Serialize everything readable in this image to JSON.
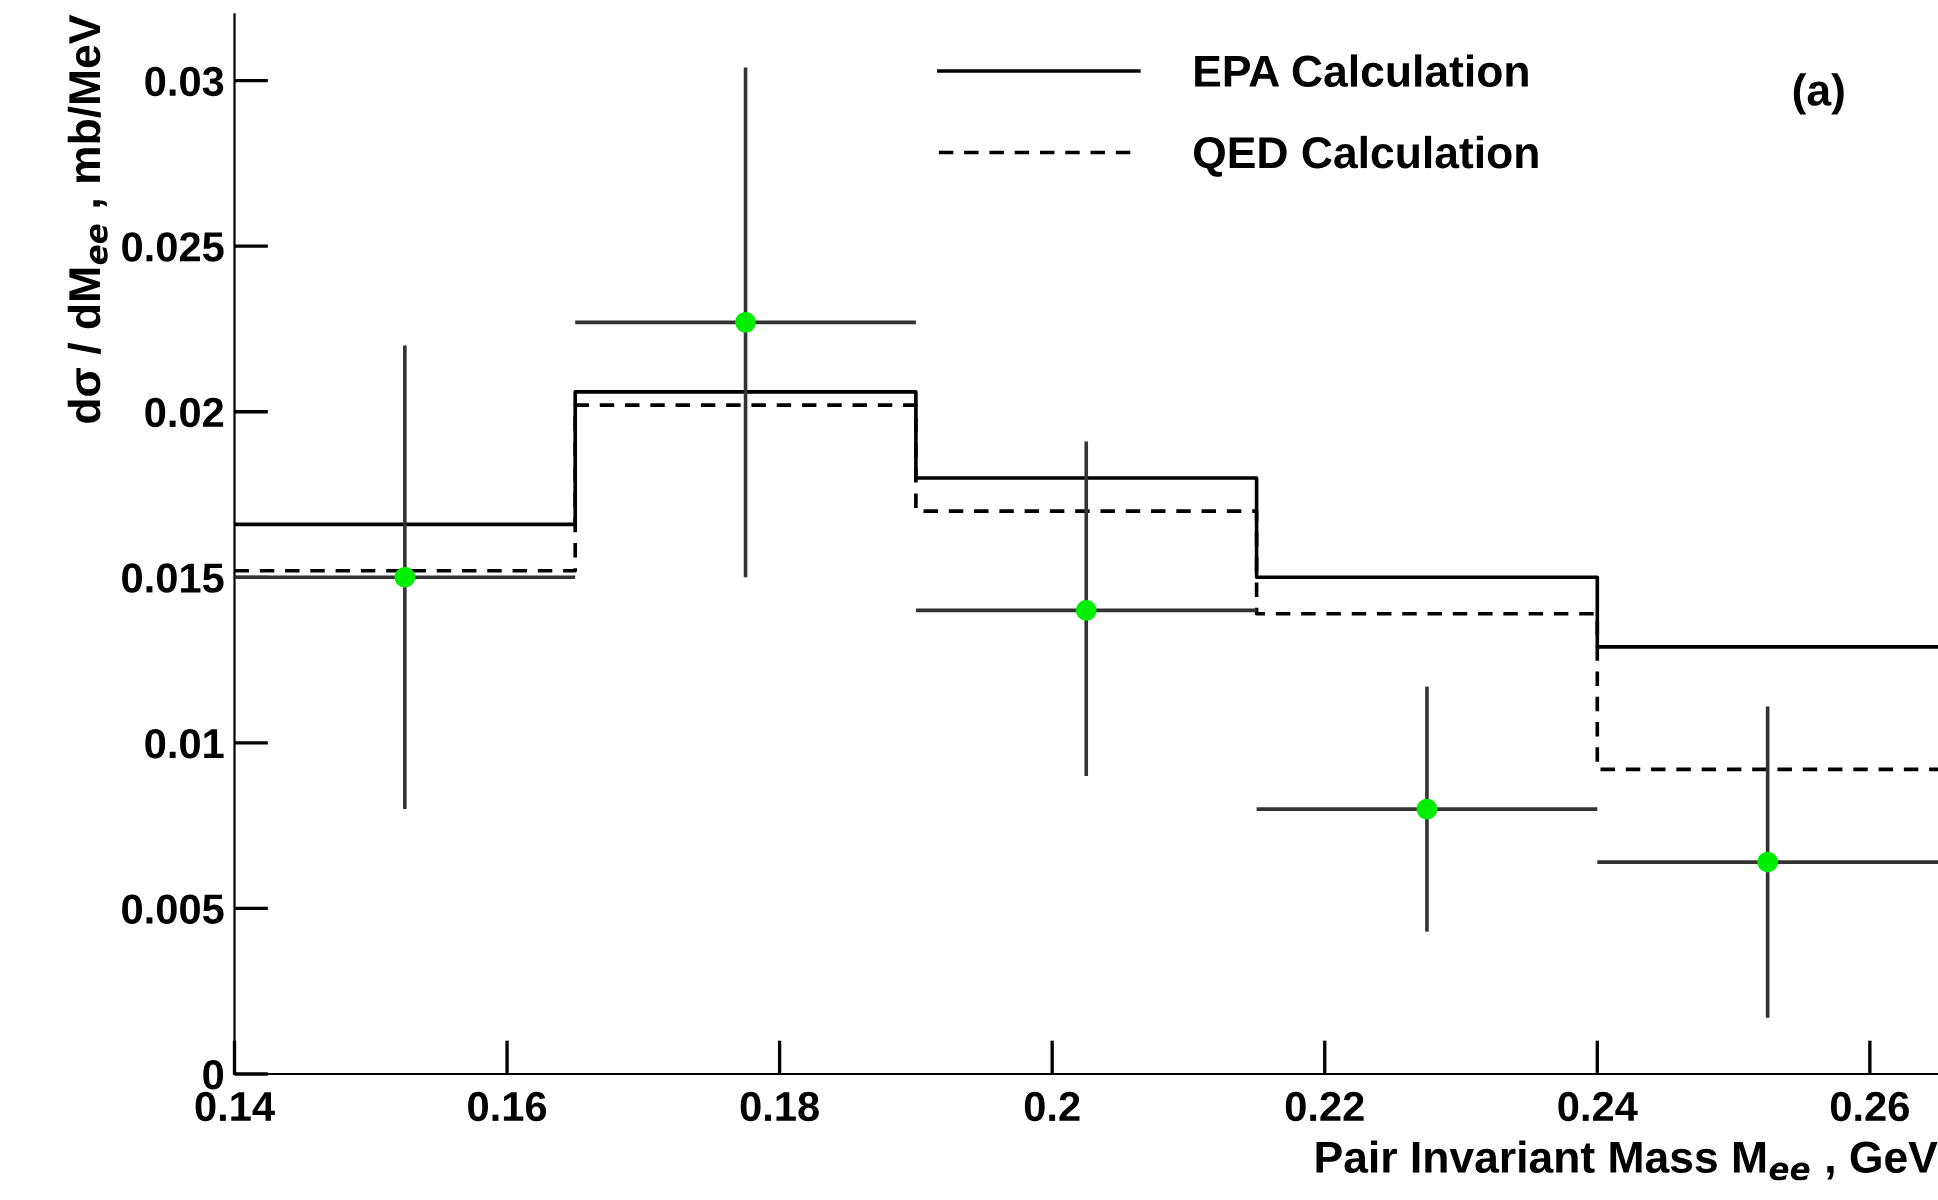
{
  "chart_data": {
    "type": "step",
    "xlabel": "Pair Invariant Mass M$_{ee}$ , GeV",
    "ylabel": "dσ / dM$_{ee}$ , mb/MeV",
    "annotations": [
      "(a)"
    ],
    "xlim": [
      0.14,
      0.265
    ],
    "ylim": [
      0,
      0.032
    ],
    "xticks": [
      0.14,
      0.16,
      0.18,
      0.2,
      0.22,
      0.24,
      0.26
    ],
    "yticks": [
      0,
      0.005,
      0.01,
      0.015,
      0.02,
      0.025,
      0.03
    ],
    "grid": false,
    "legend": "top",
    "series": [
      {
        "name": "EPA Calculation",
        "color": "#000000",
        "line_style": "solid",
        "x": [
          0.14,
          0.165,
          0.19,
          0.215,
          0.24,
          0.265
        ],
        "values": [
          0.0166,
          0.0206,
          0.018,
          0.015,
          0.0129,
          0.0129
        ]
      },
      {
        "name": "QED Calculation",
        "color": "#000000",
        "line_style": "dashed",
        "x": [
          0.14,
          0.165,
          0.19,
          0.215,
          0.24,
          0.265
        ],
        "values": [
          0.0152,
          0.0202,
          0.017,
          0.0139,
          0.0092,
          0.0092
        ]
      },
      {
        "type": "scatter",
        "color": "#00ee00",
        "marker": "circle",
        "x": [
          0.1525,
          0.1775,
          0.2025,
          0.2275,
          0.2525
        ],
        "values": [
          0.015,
          0.0227,
          0.014,
          0.008,
          0.0064
        ],
        "errors": [
          [
            0.008,
            0.022
          ],
          [
            0.015,
            0.0304
          ],
          [
            0.009,
            0.0191
          ],
          [
            0.0043,
            0.0117
          ],
          [
            0.0017,
            0.0111
          ]
        ],
        "xerrors": [
          0.0125,
          0.0125,
          0.0125,
          0.0125,
          0.0125
        ]
      }
    ]
  }
}
